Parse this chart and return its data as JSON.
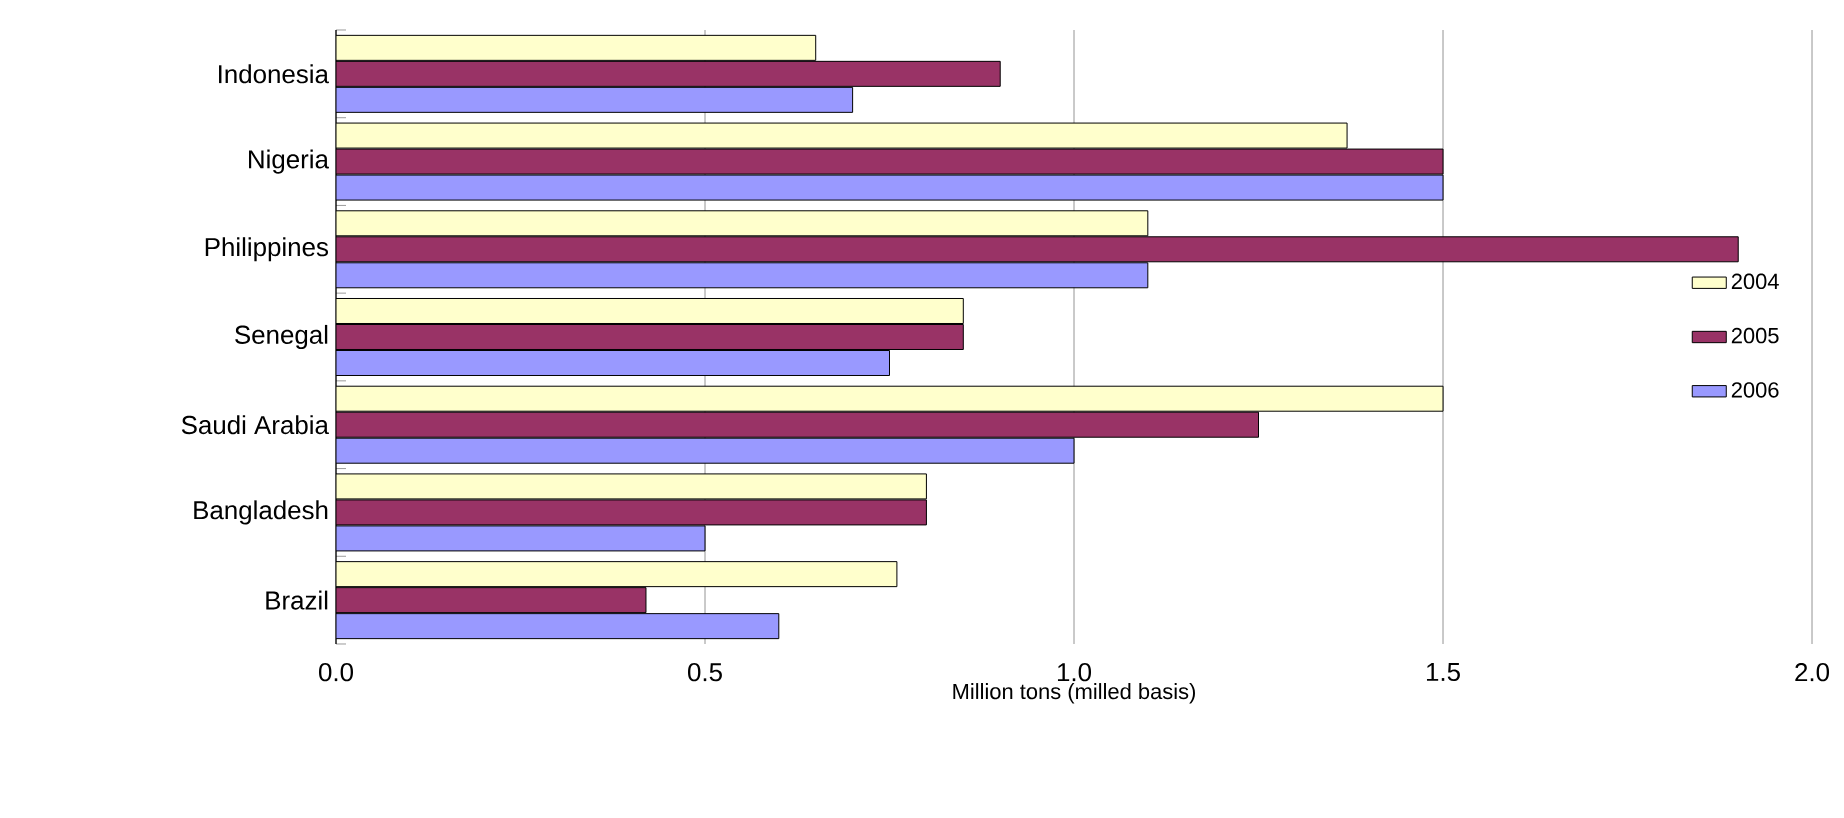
{
  "chart_data": {
    "type": "bar",
    "orientation": "horizontal",
    "xlabel": "Million tons (milled basis)",
    "categories": [
      "Indonesia",
      "Nigeria",
      "Philippines",
      "Senegal",
      "Saudi Arabia",
      "Bangladesh",
      "Brazil"
    ],
    "series": [
      {
        "name": "2004",
        "color": "#ffffcc",
        "values": [
          0.65,
          1.37,
          1.1,
          0.85,
          1.5,
          0.8,
          0.76
        ]
      },
      {
        "name": "2005",
        "color": "#993366",
        "values": [
          0.9,
          1.5,
          1.9,
          0.85,
          1.25,
          0.8,
          0.42
        ]
      },
      {
        "name": "2006",
        "color": "#9999ff",
        "values": [
          0.7,
          1.5,
          1.1,
          0.75,
          1.0,
          0.5,
          0.6
        ]
      }
    ],
    "xlim": [
      0,
      2
    ],
    "xticks": [
      {
        "value": 0,
        "label": "0.0"
      },
      {
        "value": 0.5,
        "label": "0.5"
      },
      {
        "value": 1,
        "label": "1.0"
      },
      {
        "value": 1.5,
        "label": "1.5"
      },
      {
        "value": 2,
        "label": "2.0"
      }
    ],
    "grid": "x",
    "legend": "right"
  }
}
